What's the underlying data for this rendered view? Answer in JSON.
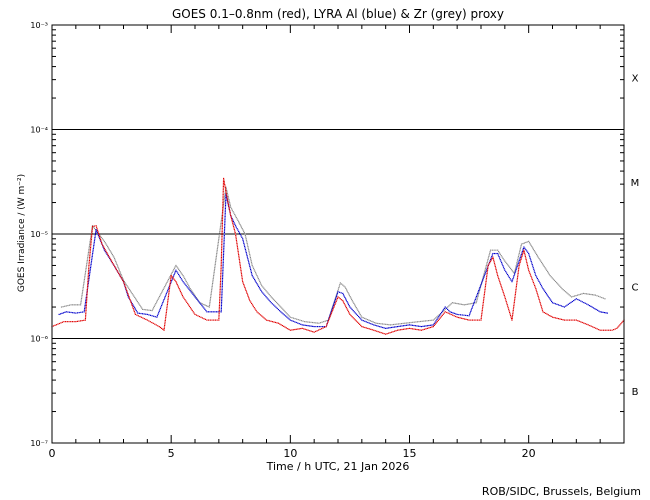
{
  "chart_data": {
    "type": "scatter",
    "title": "GOES 0.1–0.8nm (red), LYRA Al (blue) & Zr (grey) proxy",
    "xlabel": "Time / h UTC, 21 Jan 2026",
    "ylabel": "GOES Irradiance / (W m⁻²)",
    "x_ticks": [
      0,
      5,
      10,
      15,
      20
    ],
    "xlim": [
      0,
      24
    ],
    "y_scale": "log",
    "ylim": [
      1e-07,
      0.001
    ],
    "y_ticks": [
      {
        "value": 1e-07,
        "label": "10⁻⁷"
      },
      {
        "value": 1e-06,
        "label": "10⁻⁶"
      },
      {
        "value": 1e-05,
        "label": "10⁻⁵"
      },
      {
        "value": 0.0001,
        "label": "10⁻⁴"
      },
      {
        "value": 0.001,
        "label": "10⁻³"
      }
    ],
    "flare_classes": [
      {
        "label": "B",
        "value": 3.16e-07
      },
      {
        "label": "C",
        "value": 3.16e-06
      },
      {
        "label": "M",
        "value": 3.16e-05
      },
      {
        "label": "X",
        "value": 0.000316
      }
    ],
    "reference_lines": [
      1e-06,
      1e-05,
      0.0001
    ],
    "series": [
      {
        "color": "#e00000",
        "x": [
          0.0,
          0.5,
          1.0,
          1.4,
          1.55,
          1.7,
          1.85,
          2.1,
          2.5,
          3.0,
          3.5,
          4.0,
          4.5,
          4.7,
          5.0,
          5.2,
          5.5,
          6.0,
          6.5,
          7.0,
          7.1,
          7.2,
          7.35,
          7.5,
          7.7,
          8.0,
          8.3,
          8.6,
          9.0,
          9.5,
          10.0,
          10.5,
          11.0,
          11.5,
          12.0,
          12.2,
          12.5,
          13.0,
          13.5,
          14.0,
          14.5,
          15.0,
          15.5,
          16.0,
          16.5,
          17.0,
          17.5,
          18.0,
          18.3,
          18.5,
          18.7,
          19.0,
          19.3,
          19.6,
          19.8,
          20.0,
          20.3,
          20.6,
          21.0,
          21.5,
          22.0,
          22.5,
          23.0,
          23.5,
          23.7,
          24.0
        ],
        "y": [
          1.3e-06,
          1.45e-06,
          1.45e-06,
          1.5e-06,
          5e-06,
          1.18e-05,
          1.2e-05,
          8e-06,
          5.5e-06,
          3.5e-06,
          1.7e-06,
          1.5e-06,
          1.3e-06,
          1.2e-06,
          4e-06,
          3.5e-06,
          2.5e-06,
          1.7e-06,
          1.5e-06,
          1.5e-06,
          5e-06,
          3.4e-05,
          2.2e-05,
          1.5e-05,
          1e-05,
          3.5e-06,
          2.3e-06,
          1.8e-06,
          1.5e-06,
          1.4e-06,
          1.2e-06,
          1.25e-06,
          1.15e-06,
          1.3e-06,
          2.5e-06,
          2.3e-06,
          1.7e-06,
          1.3e-06,
          1.2e-06,
          1.1e-06,
          1.2e-06,
          1.25e-06,
          1.2e-06,
          1.3e-06,
          1.8e-06,
          1.6e-06,
          1.5e-06,
          1.5e-06,
          5e-06,
          6e-06,
          4e-06,
          2.5e-06,
          1.5e-06,
          5e-06,
          7e-06,
          4.5e-06,
          3e-06,
          1.8e-06,
          1.6e-06,
          1.5e-06,
          1.5e-06,
          1.35e-06,
          1.2e-06,
          1.2e-06,
          1.25e-06,
          1.5e-06
        ]
      },
      {
        "color": "#0000cc",
        "x": [
          0.3,
          0.6,
          1.0,
          1.35,
          1.85,
          2.2,
          2.6,
          3.0,
          3.2,
          3.6,
          4.0,
          4.4,
          5.2,
          5.5,
          6.0,
          6.5,
          7.1,
          7.3,
          7.5,
          7.7,
          8.0,
          8.4,
          8.8,
          9.2,
          9.6,
          10.0,
          10.5,
          11.0,
          11.5,
          12.0,
          12.2,
          12.5,
          13.0,
          13.5,
          14.0,
          14.5,
          15.0,
          15.5,
          16.0,
          16.5,
          16.7,
          17.0,
          17.5,
          18.5,
          18.7,
          19.0,
          19.3,
          19.8,
          20.0,
          20.3,
          20.6,
          21.0,
          21.5,
          22.0,
          22.5,
          23.0,
          23.3
        ],
        "y": [
          1.7e-06,
          1.8e-06,
          1.75e-06,
          1.8e-06,
          1.1e-05,
          7e-06,
          5e-06,
          3.5e-06,
          2.5e-06,
          1.75e-06,
          1.7e-06,
          1.6e-06,
          4.5e-06,
          3.5e-06,
          2.5e-06,
          1.8e-06,
          1.8e-06,
          2.4e-05,
          1.5e-05,
          1.2e-05,
          9e-06,
          4e-06,
          2.8e-06,
          2.2e-06,
          1.8e-06,
          1.5e-06,
          1.35e-06,
          1.3e-06,
          1.3e-06,
          2.8e-06,
          2.7e-06,
          2e-06,
          1.5e-06,
          1.35e-06,
          1.25e-06,
          1.3e-06,
          1.35e-06,
          1.3e-06,
          1.35e-06,
          2e-06,
          1.8e-06,
          1.7e-06,
          1.65e-06,
          6.5e-06,
          6.5e-06,
          4.5e-06,
          3.5e-06,
          7.5e-06,
          6.5e-06,
          4e-06,
          3e-06,
          2.2e-06,
          2e-06,
          2.4e-06,
          2.1e-06,
          1.8e-06,
          1.75e-06
        ]
      },
      {
        "color": "#8a8a8a",
        "x": [
          0.4,
          0.8,
          1.2,
          1.7,
          2.2,
          2.6,
          3.0,
          3.8,
          4.2,
          5.2,
          5.5,
          5.8,
          6.2,
          6.6,
          7.3,
          7.5,
          7.8,
          8.1,
          8.4,
          8.8,
          9.2,
          9.6,
          10.0,
          10.6,
          11.2,
          11.6,
          12.1,
          12.3,
          12.6,
          13.0,
          13.6,
          14.2,
          14.8,
          15.4,
          16.0,
          16.8,
          17.3,
          17.8,
          18.4,
          18.7,
          19.0,
          19.4,
          19.7,
          20.0,
          20.4,
          20.9,
          21.4,
          21.8,
          22.3,
          22.8,
          23.2
        ],
        "y": [
          2e-06,
          2.1e-06,
          2.1e-06,
          1.2e-05,
          8.5e-06,
          6e-06,
          3.6e-06,
          1.9e-06,
          1.85e-06,
          5e-06,
          4e-06,
          3e-06,
          2.2e-06,
          2e-06,
          2.8e-05,
          1.8e-05,
          1.35e-05,
          1e-05,
          5e-06,
          3.2e-06,
          2.5e-06,
          2e-06,
          1.6e-06,
          1.45e-06,
          1.4e-06,
          1.5e-06,
          3.4e-06,
          3.1e-06,
          2.3e-06,
          1.6e-06,
          1.4e-06,
          1.35e-06,
          1.4e-06,
          1.45e-06,
          1.5e-06,
          2.2e-06,
          2.1e-06,
          2.2e-06,
          7e-06,
          7e-06,
          5.5e-06,
          4.2e-06,
          8e-06,
          8.5e-06,
          6e-06,
          4e-06,
          3e-06,
          2.5e-06,
          2.7e-06,
          2.6e-06,
          2.4e-06
        ]
      }
    ]
  },
  "credit": "ROB/SIDC, Brussels, Belgium"
}
